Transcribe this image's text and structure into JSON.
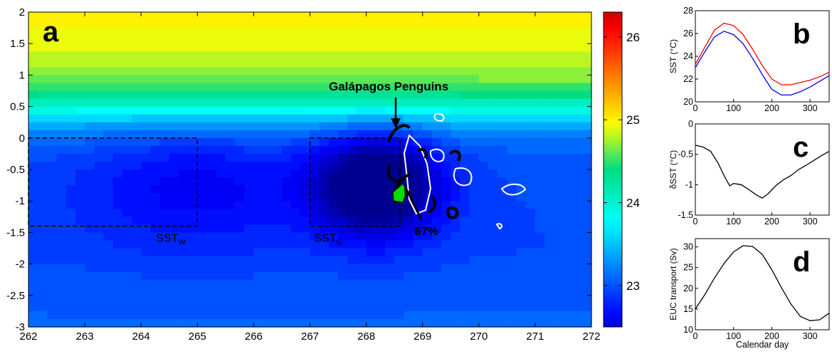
{
  "chart_data": [
    {
      "panel": "a",
      "type": "heatmap",
      "panel_label": "a",
      "xlim": [
        262,
        272
      ],
      "ylim": [
        -3,
        2
      ],
      "xticks": [
        "262",
        "263",
        "264",
        "265",
        "266",
        "267",
        "268",
        "269",
        "270",
        "271",
        "272"
      ],
      "yticks": [
        "2",
        "1.5",
        "1",
        "0.5",
        "0",
        "-0.5",
        "-1",
        "-1.5",
        "-2",
        "-2.5",
        "-3"
      ],
      "colorbar": {
        "min": 22.5,
        "max": 26.3,
        "ticks": [
          "26",
          "25",
          "24",
          "23"
        ]
      },
      "cold_core": {
        "x": 268.2,
        "y": -0.75,
        "value": 22.6
      },
      "boxes": [
        {
          "name": "SST_W",
          "label_main": "SST",
          "label_sub": "W",
          "x": [
            262,
            265
          ],
          "y": [
            -1.4,
            0
          ]
        },
        {
          "name": "SST_G",
          "label_main": "SST",
          "label_sub": "G",
          "x": [
            267,
            268.6
          ],
          "y": [
            -1.4,
            0
          ]
        }
      ],
      "annotations": {
        "penguins": "Galápagos Penguins",
        "percent": "67%"
      }
    },
    {
      "panel": "b",
      "type": "line",
      "panel_label": "b",
      "ylabel": "SST (°C)",
      "xlim": [
        0,
        350
      ],
      "ylim": [
        20,
        28
      ],
      "xticks": [
        "0",
        "100",
        "200",
        "300"
      ],
      "yticks": [
        "28",
        "26",
        "24",
        "22",
        "20"
      ],
      "series": [
        {
          "color": "#ff0000",
          "x": [
            0,
            25,
            50,
            75,
            100,
            125,
            150,
            175,
            200,
            225,
            250,
            275,
            300,
            325,
            350
          ],
          "y": [
            23.3,
            24.8,
            26.3,
            26.9,
            26.7,
            25.9,
            24.6,
            23.2,
            22.0,
            21.5,
            21.5,
            21.7,
            21.9,
            22.2,
            22.6
          ]
        },
        {
          "color": "#0000ff",
          "x": [
            0,
            25,
            50,
            75,
            100,
            125,
            150,
            175,
            200,
            225,
            250,
            275,
            300,
            325,
            350
          ],
          "y": [
            23.0,
            24.4,
            25.7,
            26.2,
            25.9,
            25.1,
            23.8,
            22.4,
            21.1,
            20.6,
            20.6,
            20.9,
            21.3,
            21.8,
            22.3
          ]
        }
      ]
    },
    {
      "panel": "c",
      "type": "line",
      "panel_label": "c",
      "ylabel": "δSST (°C)",
      "xlim": [
        0,
        350
      ],
      "ylim": [
        -1.5,
        0
      ],
      "xticks": [
        "0",
        "100",
        "200",
        "300"
      ],
      "yticks": [
        "0",
        "-0.5",
        "-1",
        "-1.5"
      ],
      "series": [
        {
          "color": "#000000",
          "x": [
            0,
            20,
            40,
            60,
            75,
            90,
            100,
            120,
            140,
            160,
            175,
            190,
            210,
            230,
            250,
            270,
            290,
            310,
            330,
            350
          ],
          "y": [
            -0.35,
            -0.38,
            -0.45,
            -0.65,
            -0.85,
            -1.02,
            -0.98,
            -1.0,
            -1.08,
            -1.17,
            -1.22,
            -1.15,
            -1.02,
            -0.92,
            -0.85,
            -0.75,
            -0.68,
            -0.6,
            -0.52,
            -0.45
          ]
        }
      ]
    },
    {
      "panel": "d",
      "type": "line",
      "panel_label": "d",
      "ylabel": "EUC transport (Sv)",
      "xlabel": "Calendar day",
      "xlim": [
        0,
        350
      ],
      "ylim": [
        10,
        32
      ],
      "xticks": [
        "0",
        "100",
        "200",
        "300"
      ],
      "yticks": [
        "30",
        "25",
        "20",
        "15",
        "10"
      ],
      "series": [
        {
          "color": "#000000",
          "x": [
            0,
            25,
            50,
            75,
            100,
            125,
            150,
            175,
            200,
            225,
            250,
            275,
            300,
            325,
            350
          ],
          "y": [
            15,
            18.5,
            22.5,
            26,
            28.8,
            30.3,
            30.1,
            28.2,
            24.5,
            20.2,
            16.2,
            13.2,
            12.2,
            12.4,
            14
          ]
        }
      ]
    }
  ]
}
